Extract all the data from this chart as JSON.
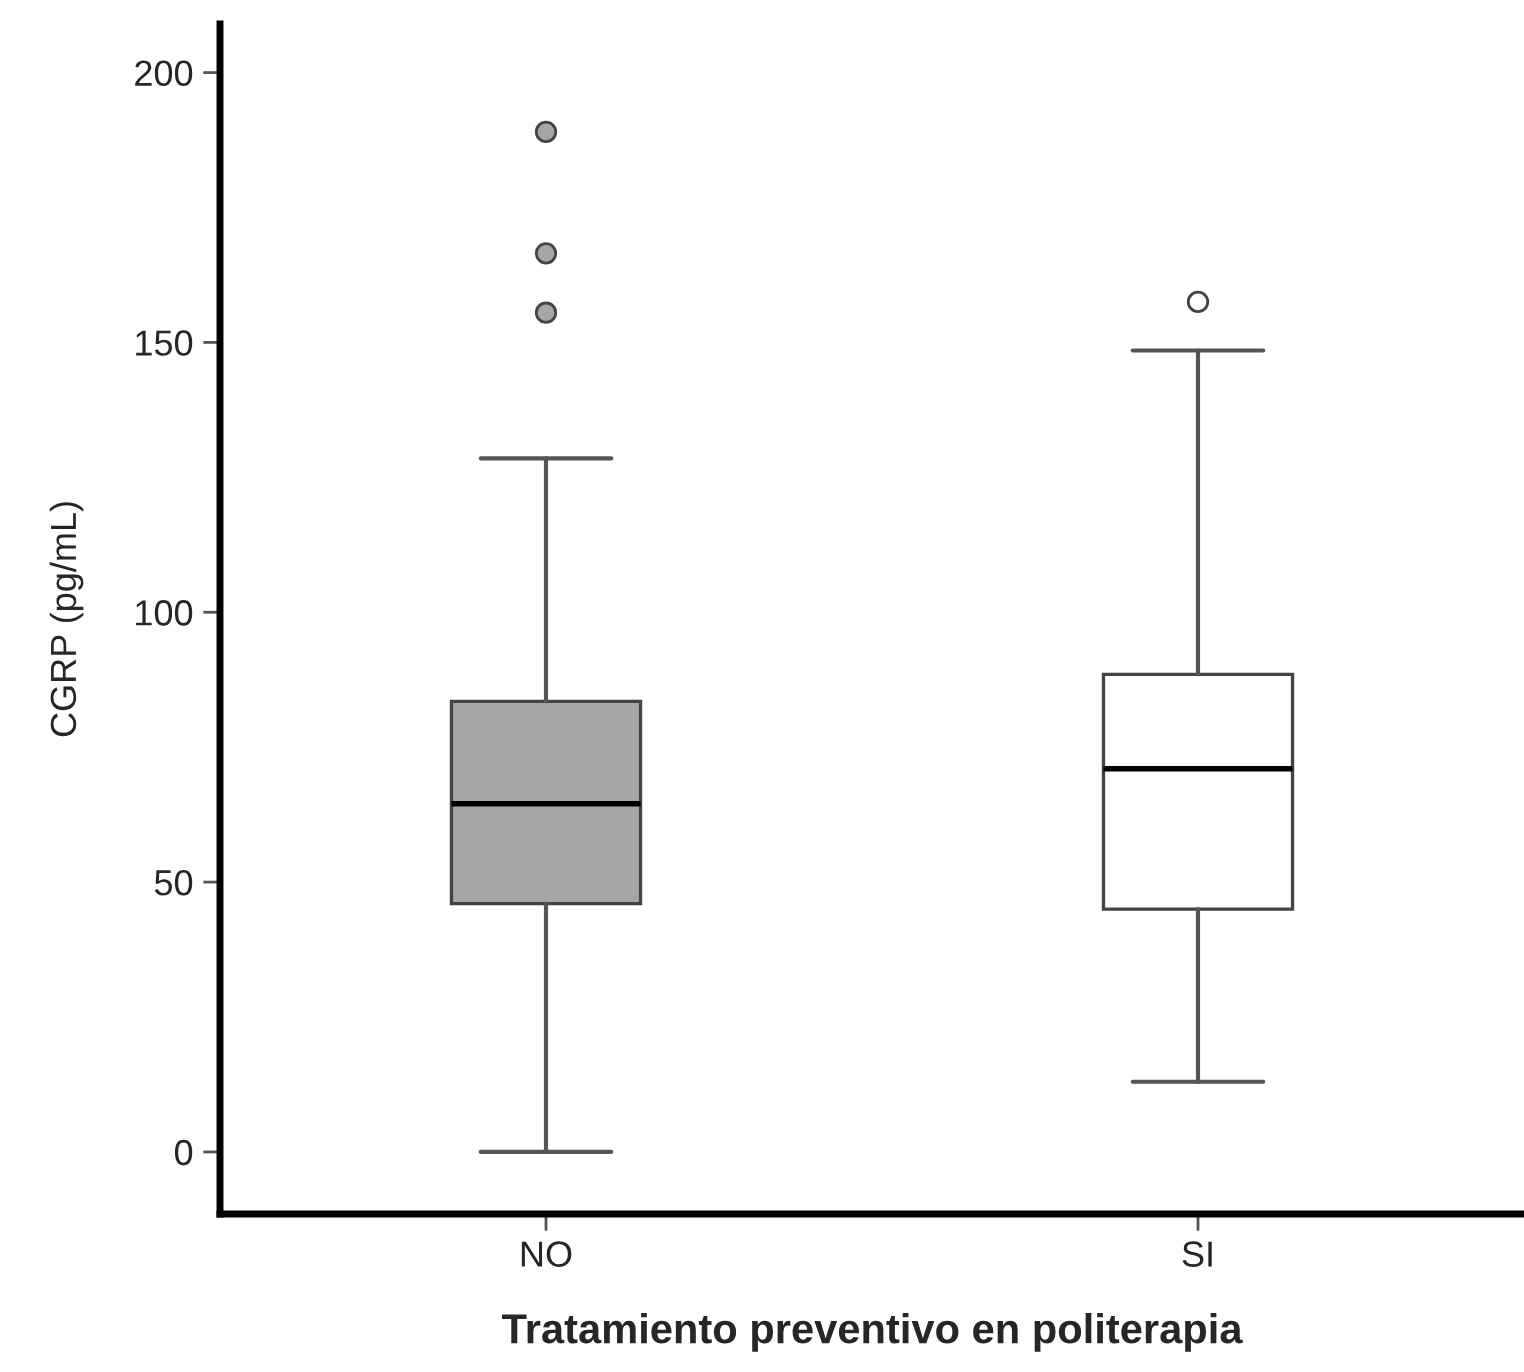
{
  "chart_data": {
    "type": "box",
    "xlabel": "Tratamiento preventivo en politerapia",
    "ylabel": "CGRP (pg/mL)",
    "categories": [
      "NO",
      "SI"
    ],
    "boxes": [
      {
        "low": 0,
        "q1": 46,
        "median": 64.5,
        "q3": 83.5,
        "high": 128.5,
        "outliers": [
          155.5,
          166.5,
          189
        ]
      },
      {
        "low": 13,
        "q1": 45,
        "median": 71,
        "q3": 88.5,
        "high": 148.5,
        "outliers": [
          157.5
        ]
      }
    ],
    "colors": [
      "#a6a6a6",
      "#ffffff"
    ],
    "ylim": [
      -11.5,
      209
    ],
    "yticks": [
      0,
      50,
      100,
      150,
      200
    ],
    "grid": false,
    "legend": false
  }
}
